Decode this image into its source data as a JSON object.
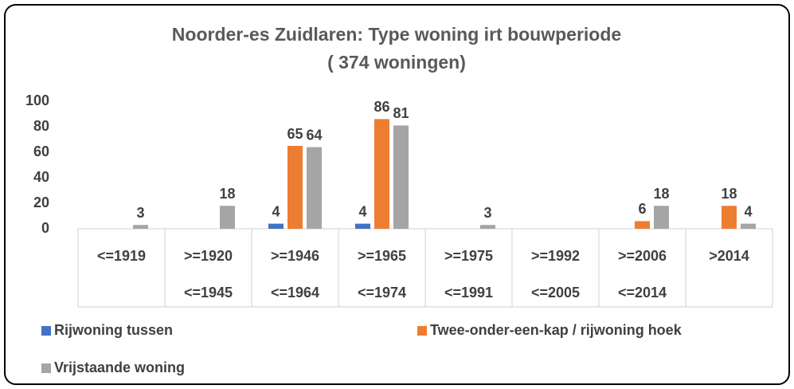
{
  "chart_data": {
    "type": "bar",
    "title": [
      "Noorder-es Zuidlaren: Type woning irt bouwperiode",
      "( 374 woningen)"
    ],
    "categories": [
      [
        "<=1919"
      ],
      [
        ">=1920",
        "<=1945"
      ],
      [
        ">=1946",
        "<=1964"
      ],
      [
        ">=1965",
        "<=1974"
      ],
      [
        ">=1975",
        "<=1991"
      ],
      [
        ">=1992",
        "<=2005"
      ],
      [
        ">=2006",
        "<=2014"
      ],
      [
        ">2014"
      ]
    ],
    "series": [
      {
        "name": "Rijwoning tussen",
        "color": "#4472c4",
        "values": [
          null,
          null,
          4,
          4,
          null,
          null,
          null,
          null
        ]
      },
      {
        "name": "Twee-onder-een-kap / rijwoning hoek",
        "color": "#ed7d31",
        "values": [
          null,
          null,
          65,
          86,
          null,
          null,
          6,
          18
        ]
      },
      {
        "name": "Vrijstaande woning",
        "color": "#a5a5a5",
        "values": [
          3,
          18,
          64,
          81,
          3,
          null,
          18,
          4
        ]
      }
    ],
    "ylim": [
      0,
      100
    ],
    "yticks": [
      0,
      20,
      40,
      60,
      80,
      100
    ],
    "grid": false
  }
}
